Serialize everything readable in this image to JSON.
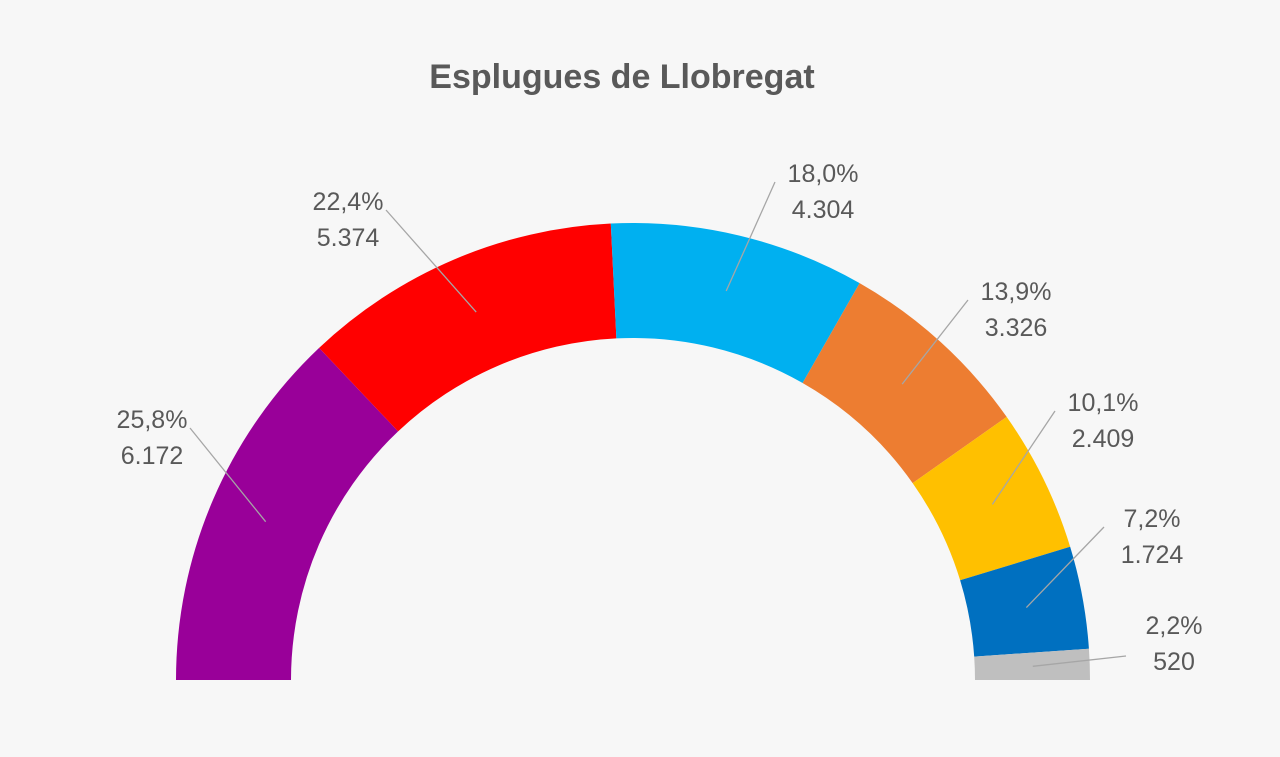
{
  "chart_data": {
    "type": "pie",
    "variant": "semicircle-donut",
    "title": "Esplugues de Llobregat",
    "series": [
      {
        "percent_label": "25,8%",
        "value_label": "6.172",
        "value": 6172,
        "color": "#990099"
      },
      {
        "percent_label": "22,4%",
        "value_label": "5.374",
        "value": 5374,
        "color": "#ff0000"
      },
      {
        "percent_label": "18,0%",
        "value_label": "4.304",
        "value": 4304,
        "color": "#00b0f0"
      },
      {
        "percent_label": "13,9%",
        "value_label": "3.326",
        "value": 3326,
        "color": "#ed7d31"
      },
      {
        "percent_label": "10,1%",
        "value_label": "2.409",
        "value": 2409,
        "color": "#ffc000"
      },
      {
        "percent_label": "7,2%",
        "value_label": "1.724",
        "value": 1724,
        "color": "#0070c0"
      },
      {
        "percent_label": "2,2%",
        "value_label": "520",
        "value": 520,
        "color": "#bfbfbf"
      }
    ],
    "legend": "none",
    "grid": false
  }
}
